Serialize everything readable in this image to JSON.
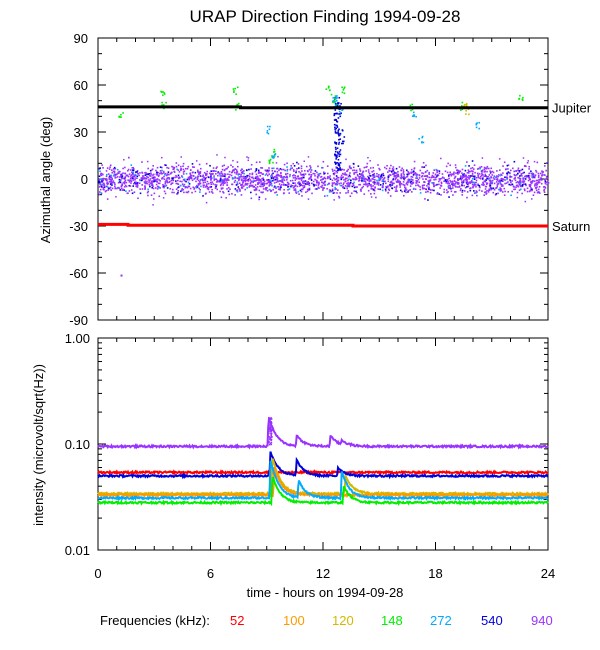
{
  "title": "URAP Direction Finding  1994-09-28",
  "colors": {
    "52": "#ff0000",
    "100": "#ff9900",
    "120": "#d4b800",
    "148": "#00ee00",
    "272": "#00aaff",
    "540": "#0000dd",
    "940": "#9933ff",
    "jupiter": "#000000",
    "saturn": "#ff0000"
  },
  "chart_data": [
    {
      "type": "scatter",
      "title": "URAP Direction Finding  1994-09-28",
      "xlabel": "",
      "ylabel": "Azimuthal angle (deg)",
      "xlim": [
        0,
        24
      ],
      "ylim": [
        -90,
        90
      ],
      "yticks": [
        90,
        60,
        30,
        0,
        -30,
        -60,
        -90
      ],
      "reference_lines": [
        {
          "name": "Jupiter",
          "y": [
            [
              0,
              46
            ],
            [
              7.6,
              46
            ],
            [
              7.6,
              45.5
            ],
            [
              24,
              45.5
            ]
          ]
        },
        {
          "name": "Saturn",
          "y": [
            [
              0,
              -29
            ],
            [
              1.6,
              -29
            ],
            [
              1.6,
              -29.5
            ],
            [
              13.6,
              -29.5
            ],
            [
              13.6,
              -30
            ],
            [
              24,
              -30
            ]
          ]
        }
      ],
      "series": [
        {
          "name": "940",
          "baseline": 0,
          "spread": 7,
          "note": "continuous band around 0 deg over 0-24 h"
        },
        {
          "name": "540",
          "scatter_points": [
            [
              12.7,
              50
            ],
            [
              12.8,
              45
            ],
            [
              12.9,
              30
            ],
            [
              12.7,
              15
            ],
            [
              12.6,
              40
            ],
            [
              13.0,
              25
            ],
            [
              12.8,
              8
            ]
          ]
        },
        {
          "name": "148",
          "scatter_points": [
            [
              3.4,
              55
            ],
            [
              3.5,
              48
            ],
            [
              7.3,
              57
            ],
            [
              7.4,
              47
            ],
            [
              9.3,
              17
            ],
            [
              9.2,
              12
            ],
            [
              12.2,
              58
            ],
            [
              12.5,
              52
            ],
            [
              13.0,
              57
            ],
            [
              12.6,
              47
            ],
            [
              16.7,
              46
            ],
            [
              19.4,
              47
            ],
            [
              22.5,
              53
            ],
            [
              1.2,
              42
            ]
          ]
        },
        {
          "name": "272",
          "scatter_points": [
            [
              9.1,
              32
            ],
            [
              9.3,
              15
            ],
            [
              12.7,
              48
            ],
            [
              12.9,
              44
            ],
            [
              12.6,
              52
            ],
            [
              16.8,
              42
            ],
            [
              17.2,
              26
            ],
            [
              20.2,
              35
            ]
          ]
        },
        {
          "name": "120",
          "scatter_points": [
            [
              19.5,
              49
            ],
            [
              19.7,
              44
            ]
          ]
        }
      ]
    },
    {
      "type": "line",
      "xlabel": "time - hours on 1994-09-28",
      "ylabel": "intensity (microvolt/sqrt(Hz))",
      "xlim": [
        0,
        24
      ],
      "ylim": [
        0.01,
        1.0
      ],
      "yscale": "log",
      "yticks": [
        "0.01",
        "0.10",
        "1.00"
      ],
      "xticks": [
        0,
        6,
        12,
        18,
        24
      ],
      "series": [
        {
          "name": "940",
          "baseline": 0.095,
          "bursts": [
            [
              9.1,
              0.18
            ],
            [
              10.6,
              0.12
            ],
            [
              12.4,
              0.12
            ],
            [
              13.0,
              0.105
            ]
          ]
        },
        {
          "name": "52",
          "baseline": 0.054,
          "bursts": []
        },
        {
          "name": "540",
          "baseline": 0.05,
          "bursts": [
            [
              9.2,
              0.085
            ],
            [
              10.6,
              0.07
            ],
            [
              12.8,
              0.06
            ]
          ]
        },
        {
          "name": "120",
          "baseline": 0.034,
          "bursts": [
            [
              9.3,
              0.075
            ],
            [
              13.2,
              0.05
            ]
          ]
        },
        {
          "name": "100",
          "baseline": 0.033,
          "bursts": [
            [
              9.4,
              0.06
            ]
          ]
        },
        {
          "name": "272",
          "baseline": 0.031,
          "bursts": [
            [
              9.2,
              0.07
            ],
            [
              10.7,
              0.045
            ],
            [
              13.0,
              0.055
            ]
          ]
        },
        {
          "name": "148",
          "baseline": 0.028,
          "bursts": [
            [
              9.3,
              0.05
            ],
            [
              13.1,
              0.04
            ]
          ]
        }
      ]
    }
  ],
  "legend": {
    "label": "Frequencies (kHz):",
    "entries": [
      "52",
      "100",
      "120",
      "148",
      "272",
      "540",
      "940"
    ]
  }
}
